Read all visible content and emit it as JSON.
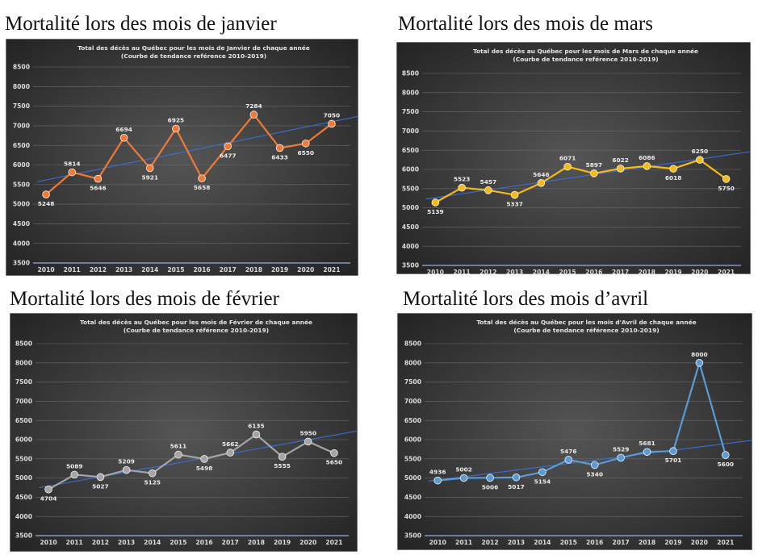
{
  "headings": {
    "jan": "Mortalité lors des mois de janvier",
    "mar": "Mortalité lors des mois de mars",
    "feb": "Mortalité lors des mois de février",
    "apr": "Mortalité lors des mois d’avril"
  },
  "chart_data": [
    {
      "id": "jan",
      "type": "line",
      "title": "Total des décès au Québec pour les mois de Janvier de chaque année",
      "subtitle": "(Courbe de tendance reférence 2010-2019)",
      "categories": [
        "2010",
        "2011",
        "2012",
        "2013",
        "2014",
        "2015",
        "2016",
        "2017",
        "2018",
        "2019",
        "2020",
        "2021"
      ],
      "values": [
        5248,
        5814,
        5646,
        6694,
        5921,
        6925,
        5658,
        6477,
        7284,
        6433,
        6550,
        7050
      ],
      "ylim": [
        3500,
        8500
      ],
      "yticks": [
        3500,
        4000,
        4500,
        5000,
        5500,
        6000,
        6500,
        7000,
        7500,
        8000,
        8500
      ],
      "trend": [
        5570,
        7250
      ],
      "label_pos": [
        "b",
        "a",
        "b",
        "a",
        "b",
        "a",
        "b",
        "b",
        "a",
        "b",
        "b",
        "a"
      ],
      "color": "#ef7a35",
      "trend_color": "#3a6fd8",
      "grid": true
    },
    {
      "id": "mar",
      "type": "line",
      "title": "Total des décès au Québec pour les mois de Mars de chaque année",
      "subtitle": "(Courbe de tendance reférence 2010-2019)",
      "categories": [
        "2010",
        "2011",
        "2012",
        "2013",
        "2014",
        "2015",
        "2016",
        "2017",
        "2018",
        "2019",
        "2020",
        "2021"
      ],
      "values": [
        5139,
        5523,
        5457,
        5337,
        5646,
        6071,
        5897,
        6022,
        6086,
        6018,
        6250,
        5750
      ],
      "ylim": [
        3500,
        8500
      ],
      "yticks": [
        3500,
        4000,
        4500,
        5000,
        5500,
        6000,
        6500,
        7000,
        7500,
        8000,
        8500
      ],
      "trend": [
        5230,
        6480
      ],
      "label_pos": [
        "b",
        "a",
        "a",
        "b",
        "a",
        "a",
        "a",
        "a",
        "a",
        "b",
        "a",
        "b"
      ],
      "color": "#f4bb16",
      "trend_color": "#3a6fd8",
      "grid": true
    },
    {
      "id": "feb",
      "type": "line",
      "title": "Total des décès au Québec pour les mois de Février de chaque année",
      "subtitle": "(Courbe de tendance référence 2010-2019)",
      "categories": [
        "2010",
        "2011",
        "2012",
        "2013",
        "2014",
        "2015",
        "2016",
        "2017",
        "2018",
        "2019",
        "2020",
        "2021"
      ],
      "values": [
        4704,
        5089,
        5027,
        5209,
        5125,
        5611,
        5498,
        5662,
        6135,
        5555,
        5950,
        5650
      ],
      "ylim": [
        3500,
        8500
      ],
      "yticks": [
        3500,
        4000,
        4500,
        5000,
        5500,
        6000,
        6500,
        7000,
        7500,
        8000,
        8500
      ],
      "trend": [
        4750,
        6250
      ],
      "label_pos": [
        "b",
        "a",
        "b",
        "a",
        "b",
        "a",
        "b",
        "a",
        "a",
        "b",
        "a",
        "b"
      ],
      "color": "#a5a5a5",
      "trend_color": "#3a6fd8",
      "grid": true
    },
    {
      "id": "apr",
      "type": "line",
      "title": "Total des décès au Québec pour les mois d'Avril de chaque année",
      "subtitle": "(Courbe de tendance référence 2010-2019)",
      "categories": [
        "2010",
        "2011",
        "2012",
        "2013",
        "2014",
        "2015",
        "2016",
        "2017",
        "2018",
        "2019",
        "2020",
        "2021"
      ],
      "values": [
        4936,
        5002,
        5006,
        5017,
        5154,
        5476,
        5340,
        5529,
        5681,
        5701,
        8000,
        5600
      ],
      "ylim": [
        3500,
        8500
      ],
      "yticks": [
        3500,
        4000,
        4500,
        5000,
        5500,
        6000,
        6500,
        7000,
        7500,
        8000,
        8500
      ],
      "trend": [
        4920,
        5990
      ],
      "label_pos": [
        "a",
        "a",
        "b",
        "b",
        "b",
        "a",
        "b",
        "a",
        "a",
        "b",
        "a",
        "b"
      ],
      "color": "#5b9bd5",
      "trend_color": "#3a6fd8",
      "grid": true
    }
  ]
}
